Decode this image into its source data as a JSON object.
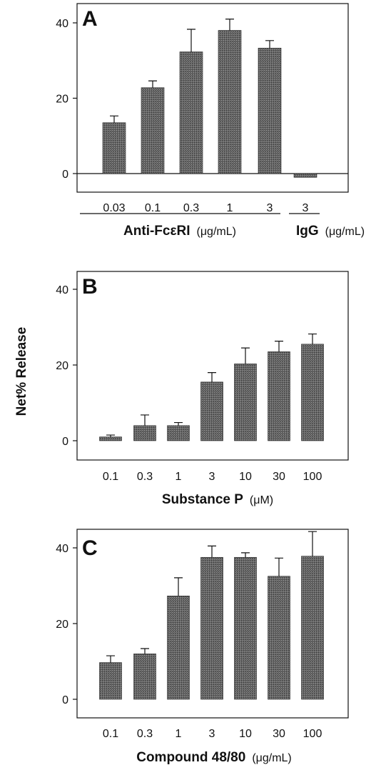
{
  "figure": {
    "ylabel": "Net% Release"
  },
  "chart_data": [
    {
      "type": "bar",
      "panel": "A",
      "categories": [
        "0.03",
        "0.1",
        "0.3",
        "1",
        "3",
        "3"
      ],
      "values": [
        13.5,
        22.8,
        32.3,
        38.0,
        33.3,
        -1.0
      ],
      "errors": [
        1.8,
        1.8,
        6.0,
        3.0,
        2.0,
        0
      ],
      "ylim": [
        -5,
        45
      ],
      "yticks": [
        0,
        20,
        40
      ],
      "zero_line": true,
      "groups": [
        {
          "label": "Anti-FcεRI",
          "unit": "(μg/mL)",
          "start": 0,
          "end": 4
        },
        {
          "label": "IgG",
          "unit": "(μg/mL)",
          "start": 5,
          "end": 5
        }
      ],
      "grid": false
    },
    {
      "type": "bar",
      "panel": "B",
      "categories": [
        "0.1",
        "0.3",
        "1",
        "3",
        "10",
        "30",
        "100"
      ],
      "values": [
        1.0,
        4.0,
        4.0,
        15.5,
        20.3,
        23.5,
        25.5
      ],
      "errors": [
        0.5,
        2.8,
        0.8,
        2.5,
        4.2,
        2.8,
        2.7
      ],
      "ylim": [
        -5,
        45
      ],
      "yticks": [
        0,
        20,
        40
      ],
      "xlabel": "Substance P",
      "xunit": "(μM)",
      "grid": false
    },
    {
      "type": "bar",
      "panel": "C",
      "categories": [
        "0.1",
        "0.3",
        "1",
        "3",
        "10",
        "30",
        "100"
      ],
      "values": [
        9.7,
        12.0,
        27.3,
        37.5,
        37.5,
        32.5,
        37.8
      ],
      "errors": [
        1.8,
        1.4,
        4.8,
        3.0,
        1.2,
        4.8,
        6.5
      ],
      "ylim": [
        -5,
        45
      ],
      "yticks": [
        0,
        20,
        40
      ],
      "xlabel": "Compound 48/80",
      "xunit": "(μg/mL)",
      "grid": false
    }
  ]
}
